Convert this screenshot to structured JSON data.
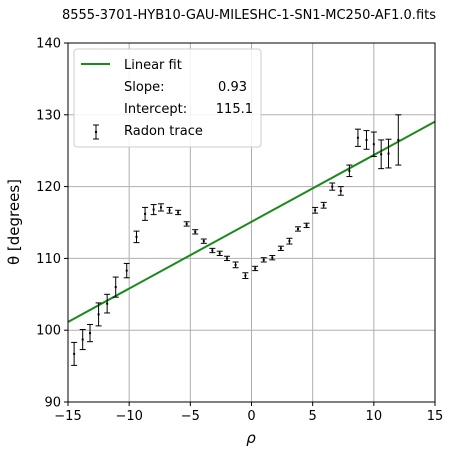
{
  "chart_data": {
    "type": "scatter",
    "title": "8555-3701-HYB10-GAU-MILESHC-1-SN1-MC250-AF1.0.fits",
    "xlabel": "ρ",
    "ylabel": "θ [degrees]",
    "xlim": [
      -15,
      15
    ],
    "ylim": [
      90,
      140
    ],
    "xticks": [
      -15,
      -10,
      -5,
      0,
      5,
      10,
      15
    ],
    "yticks": [
      90,
      100,
      110,
      120,
      130,
      140
    ],
    "grid": true,
    "legend_position": "top-left",
    "colors": {
      "fit": "#1a8a1a",
      "trace": "#000000",
      "grid": "#b0b0b0",
      "axis": "#000000"
    },
    "legend": {
      "fit_label": "Linear fit",
      "slope_label": "Slope:",
      "slope_value": "0.93",
      "intercept_label": "Intercept:",
      "intercept_value": "115.1",
      "trace_label": "Radon trace"
    },
    "fit": {
      "name": "Linear fit",
      "slope": 0.93,
      "intercept": 115.1
    },
    "series": [
      {
        "name": "Radon trace",
        "x": [
          -14.5,
          -13.8,
          -13.2,
          -12.5,
          -11.8,
          -11.1,
          -10.2,
          -9.4,
          -8.7,
          -8.0,
          -7.4,
          -6.7,
          -6.0,
          -5.3,
          -4.6,
          -3.9,
          -3.2,
          -2.6,
          -2.0,
          -1.3,
          -0.5,
          0.3,
          1.0,
          1.7,
          2.4,
          3.1,
          3.8,
          4.5,
          5.2,
          5.9,
          6.6,
          7.3,
          8.0,
          8.7,
          9.4,
          10.0,
          10.6,
          11.2,
          12.0
        ],
        "y": [
          96.7,
          98.7,
          99.6,
          102.2,
          103.7,
          106.0,
          108.3,
          113.0,
          116.2,
          116.8,
          117.1,
          116.7,
          116.4,
          114.8,
          113.7,
          112.4,
          111.1,
          110.7,
          110.0,
          109.1,
          107.6,
          108.6,
          109.8,
          110.1,
          111.4,
          112.4,
          114.1,
          114.6,
          116.7,
          117.4,
          120.0,
          119.4,
          122.2,
          126.8,
          126.5,
          125.9,
          124.5,
          124.6,
          126.5
        ],
        "err": [
          1.6,
          1.4,
          1.2,
          1.6,
          1.3,
          1.4,
          1.0,
          0.8,
          0.9,
          0.7,
          0.5,
          0.4,
          0.3,
          0.3,
          0.3,
          0.3,
          0.3,
          0.3,
          0.3,
          0.4,
          0.4,
          0.3,
          0.3,
          0.3,
          0.3,
          0.4,
          0.3,
          0.3,
          0.4,
          0.4,
          0.5,
          0.6,
          0.8,
          1.2,
          1.3,
          1.7,
          2.0,
          2.0,
          3.5
        ]
      }
    ]
  }
}
